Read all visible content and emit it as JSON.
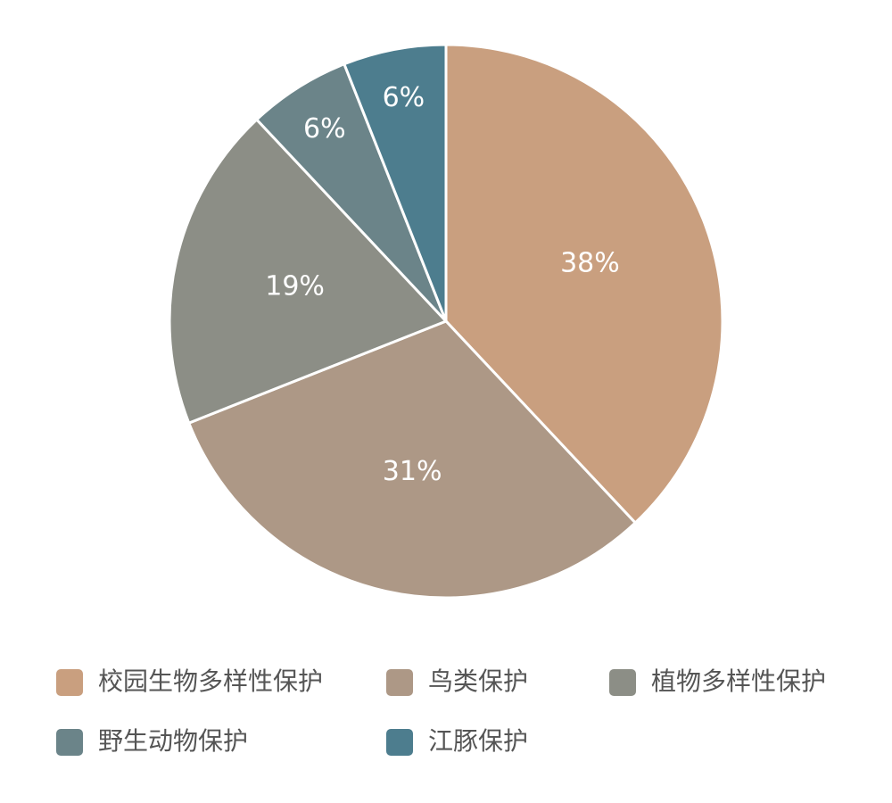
{
  "chart_data": {
    "type": "pie",
    "categories": [
      "校园生物多样性保护",
      "鸟类保护",
      "植物多样性保护",
      "野生动物保护",
      "江豚保护"
    ],
    "values": [
      38,
      31,
      19,
      6,
      6
    ],
    "value_labels": [
      "38%",
      "31%",
      "19%",
      "6%",
      "6%"
    ],
    "colors": [
      "#c99f7f",
      "#ad9886",
      "#8c8e86",
      "#6b8489",
      "#4d7d8e"
    ],
    "legend": "bottom"
  }
}
